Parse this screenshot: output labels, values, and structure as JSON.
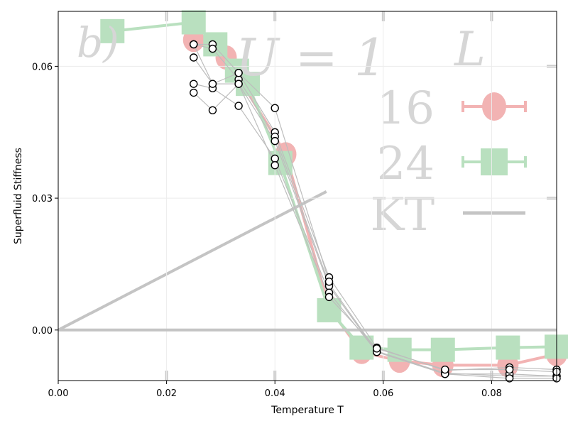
{
  "chart_data": {
    "type": "scatter",
    "xlabel": "Temperature T",
    "ylabel": "Superfluid Stiffness",
    "xlim": [
      0.0,
      0.092
    ],
    "ylim": [
      -0.0115,
      0.0725
    ],
    "xticks": [
      "0.00",
      "0.02",
      "0.04",
      "0.06",
      "0.08"
    ],
    "yticks": [
      "0.00",
      "0.03",
      "0.06"
    ],
    "grid": true,
    "background_image": {
      "panel_label": "b)",
      "title": "U = 1",
      "legend_header": "L",
      "legend_entries": [
        "16",
        "24",
        "KT"
      ],
      "series": [
        {
          "name": "16",
          "color": "#f2b3b3",
          "marker": "circle",
          "x": [
            0.025,
            0.031,
            0.042,
            0.05,
            0.056,
            0.063,
            0.071,
            0.083,
            0.092
          ],
          "y": [
            0.066,
            0.062,
            0.04,
            0.005,
            -0.005,
            -0.007,
            -0.008,
            -0.008,
            -0.0055
          ]
        },
        {
          "name": "24",
          "color": "#b9e0bf",
          "marker": "square",
          "x": [
            0.01,
            0.025,
            0.029,
            0.033,
            0.035,
            0.041,
            0.05,
            0.056,
            0.063,
            0.071,
            0.083,
            0.092
          ],
          "y": [
            0.068,
            0.07,
            0.065,
            0.059,
            0.056,
            0.038,
            0.0045,
            -0.004,
            -0.0045,
            -0.0045,
            -0.004,
            -0.0038
          ]
        },
        {
          "name": "KT",
          "color": "#c4c4c4",
          "marker": "line",
          "x": [
            0.0,
            0.0495
          ],
          "y": [
            0.0,
            0.0315
          ]
        }
      ]
    },
    "series": [
      {
        "name": "",
        "color": "#000000",
        "marker": "open-circle",
        "line_color": "#bdbdbd",
        "runs": [
          {
            "x": [
              0.025,
              0.0285,
              0.0333,
              0.04,
              0.05,
              0.0588,
              0.0714,
              0.0833,
              0.092
            ],
            "y": [
              0.065,
              0.065,
              0.0585,
              0.045,
              0.012,
              -0.004,
              -0.0092,
              -0.0085,
              -0.009
            ]
          },
          {
            "x": [
              0.025,
              0.0285,
              0.0333,
              0.04,
              0.05,
              0.0588,
              0.0714,
              0.0833,
              0.092
            ],
            "y": [
              0.065,
              0.064,
              0.057,
              0.044,
              0.0105,
              -0.0048,
              -0.0098,
              -0.0105,
              -0.0105
            ]
          },
          {
            "x": [
              0.025,
              0.0285,
              0.0333,
              0.04,
              0.05,
              0.0588,
              0.0714,
              0.0833,
              0.092
            ],
            "y": [
              0.062,
              0.056,
              0.056,
              0.043,
              0.01,
              -0.005,
              -0.01,
              -0.01,
              -0.0105
            ]
          },
          {
            "x": [
              0.025,
              0.0285,
              0.0333,
              0.04,
              0.05,
              0.0588,
              0.0714,
              0.0833,
              0.092
            ],
            "y": [
              0.056,
              0.055,
              0.051,
              0.039,
              0.0085,
              -0.005,
              -0.01,
              -0.011,
              -0.011
            ]
          },
          {
            "x": [
              0.025,
              0.0285,
              0.0333,
              0.04,
              0.05,
              0.0588,
              0.0714,
              0.0833,
              0.092
            ],
            "y": [
              0.054,
              0.05,
              0.056,
              0.0375,
              0.0075,
              -0.0042,
              -0.009,
              -0.009,
              -0.0095
            ]
          },
          {
            "x": [
              0.025,
              0.0285,
              0.0333,
              0.04,
              0.05
            ],
            "y": [
              0.065,
              0.056,
              0.0585,
              0.0505,
              0.011
            ]
          }
        ]
      }
    ]
  }
}
